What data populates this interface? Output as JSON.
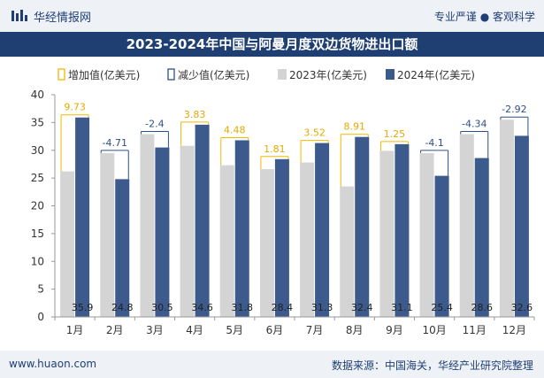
{
  "header": {
    "brand": "华经情报网",
    "tagline": "专业严谨 ● 客观科学"
  },
  "footer": {
    "url": "www.huaon.com",
    "source": "数据来源：中国海关，华经产业研究院整理"
  },
  "colors": {
    "bar2023": "#d4d4d4",
    "bar2024": "#3d5a8c",
    "increase": "#f2b800",
    "decrease": "#2d4f86",
    "header_bg": "#eef2f7",
    "title_bg": "#1f3f73"
  },
  "chart_data": {
    "type": "bar",
    "title": "2023-2024年中国与阿曼月度双边货物进出口额",
    "categories": [
      "1月",
      "2月",
      "3月",
      "4月",
      "5月",
      "6月",
      "7月",
      "8月",
      "9月",
      "10月",
      "11月",
      "12月"
    ],
    "series": [
      {
        "name": "2023年(亿美元)",
        "values": [
          26.2,
          29.5,
          32.9,
          30.8,
          27.3,
          26.6,
          27.8,
          23.5,
          29.9,
          29.5,
          32.9,
          35.5
        ]
      },
      {
        "name": "2024年(亿美元)",
        "values": [
          35.9,
          24.8,
          30.5,
          34.6,
          31.8,
          28.4,
          31.3,
          32.4,
          31.1,
          25.4,
          28.6,
          32.6
        ]
      }
    ],
    "changes": {
      "labels": [
        "9.73",
        "-4.71",
        "-2.4",
        "3.83",
        "4.48",
        "1.81",
        "3.52",
        "8.91",
        "1.25",
        "-4.1",
        "-4.34",
        "-2.92"
      ],
      "values": [
        9.73,
        -4.71,
        -2.4,
        3.83,
        4.48,
        1.81,
        3.52,
        8.91,
        1.25,
        -4.1,
        -4.34,
        -2.92
      ]
    },
    "value_labels_2024": [
      "35.9",
      "24.8",
      "30.5",
      "34.6",
      "31.8",
      "28.4",
      "31.3",
      "32.4",
      "31.1",
      "25.4",
      "28.6",
      "32.6"
    ],
    "legend": [
      "增加值(亿美元)",
      "减少值(亿美元)",
      "2023年(亿美元)",
      "2024年(亿美元)"
    ],
    "ylim": [
      0,
      40
    ],
    "yticks": [
      "0",
      "5",
      "10",
      "15",
      "20",
      "25",
      "30",
      "35",
      "40"
    ],
    "legend_position": "top"
  }
}
